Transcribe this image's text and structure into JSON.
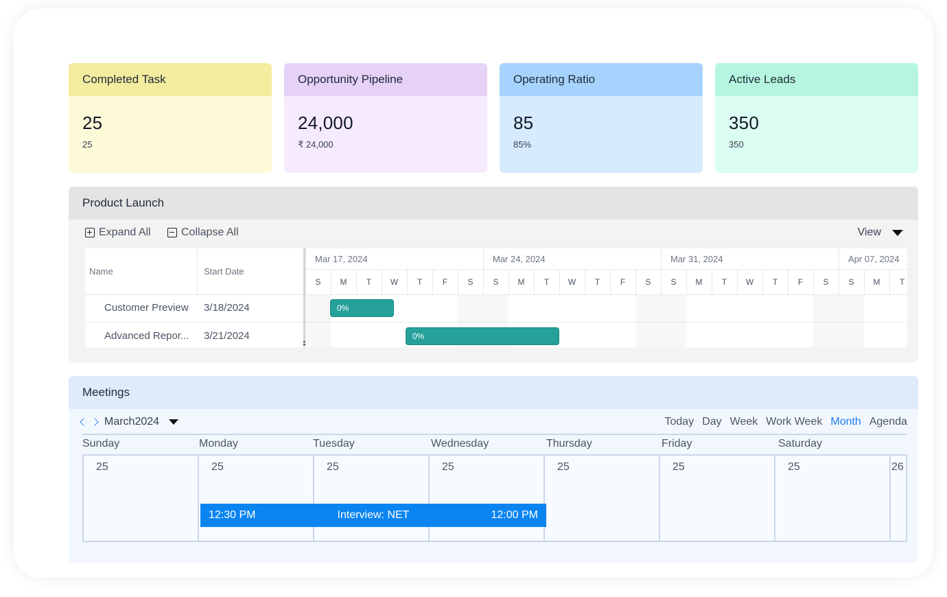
{
  "cards": [
    {
      "title": "Completed Task",
      "value": "25",
      "sub": "25",
      "head_color": "#f4ec9f",
      "body_color": "#fdfad7"
    },
    {
      "title": "Opportunity Pipeline",
      "value": "24,000",
      "sub": "₹ 24,000",
      "head_color": "#e6d2f7",
      "body_color": "#f6ebfd"
    },
    {
      "title": "Operating Ratio",
      "value": "85",
      "sub": "85%",
      "head_color": "#a6d3fd",
      "body_color": "#d7ebfe"
    },
    {
      "title": "Active Leads",
      "value": "350",
      "sub": "350",
      "head_color": "#b6f6e0",
      "body_color": "#dcfdf1"
    }
  ],
  "launch": {
    "title": "Product Launch",
    "expand_label": "Expand All",
    "collapse_label": "Collapse All",
    "view_label": "View",
    "columns": {
      "name": "Name",
      "start": "Start Date"
    },
    "rows": [
      {
        "name": "Customer Preview",
        "start": "3/18/2024",
        "progress": "0%"
      },
      {
        "name": "Advanced Repor...",
        "start": "3/21/2024",
        "progress": "0%"
      }
    ],
    "weeks": [
      "Mar 17, 2024",
      "Mar 24, 2024",
      "Mar 31, 2024",
      "Apr 07, 2024"
    ],
    "days": [
      "S",
      "M",
      "T",
      "W",
      "T",
      "F",
      "S",
      "S",
      "M",
      "T",
      "W",
      "T",
      "F",
      "S",
      "S",
      "M",
      "T",
      "W",
      "T",
      "F",
      "S",
      "S",
      "M",
      "T"
    ],
    "bar_color": "#26a09a"
  },
  "meetings": {
    "title": "Meetings",
    "month": "March2024",
    "views": [
      "Today",
      "Day",
      "Week",
      "Work Week",
      "Month",
      "Agenda"
    ],
    "active_view": "Month",
    "weekdays": [
      "Sunday",
      "Monday",
      "Tuesday",
      "Wednesday",
      "Thursday",
      "Friday",
      "Saturday"
    ],
    "dates": [
      "25",
      "25",
      "25",
      "25",
      "25",
      "25",
      "25",
      "26"
    ],
    "event": {
      "start": "12:30 PM",
      "title": "Interview: NET",
      "end": "12:00  PM",
      "color": "#0a84f0"
    }
  }
}
